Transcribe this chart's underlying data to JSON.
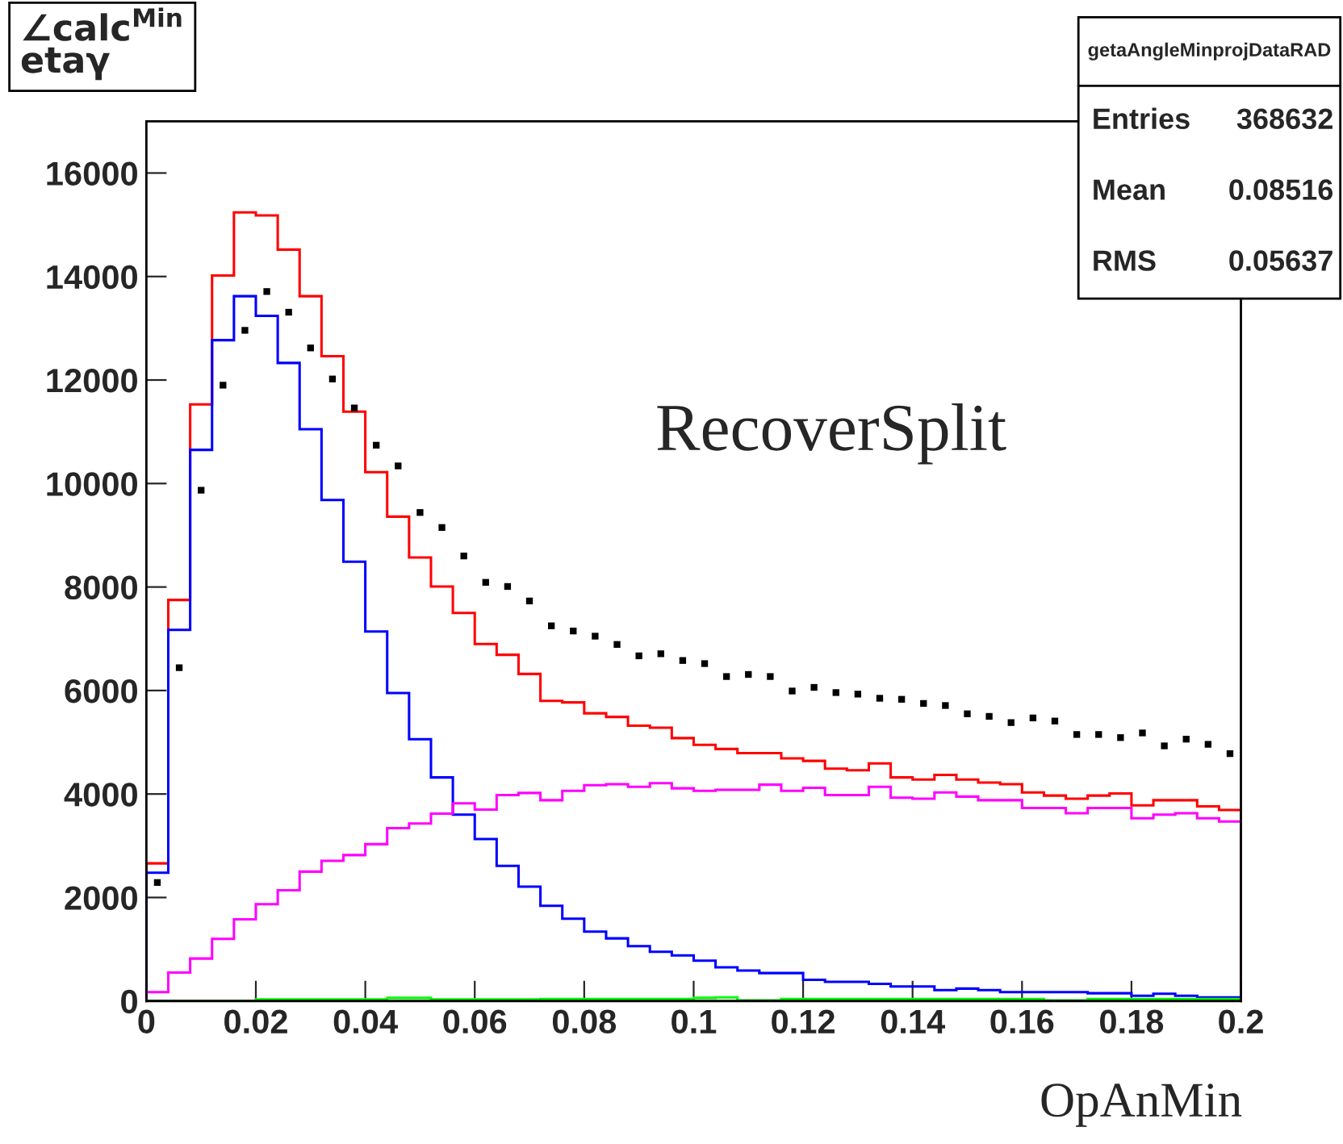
{
  "chart_data": {
    "type": "histogram",
    "title": "∠calc$^{Min}$\netaγ",
    "xlabel": "OpAnMin",
    "bins": [
      0,
      0.004,
      0.008,
      0.012,
      0.016,
      0.02,
      0.024,
      0.028,
      0.032,
      0.036,
      0.04,
      0.044,
      0.048,
      0.052,
      0.056,
      0.06,
      0.064,
      0.068,
      0.072,
      0.076,
      0.08,
      0.084,
      0.088,
      0.092,
      0.096,
      0.1,
      0.104,
      0.108,
      0.112,
      0.116,
      0.12,
      0.124,
      0.128,
      0.132,
      0.136,
      0.14,
      0.144,
      0.148,
      0.152,
      0.156,
      0.16,
      0.164,
      0.168,
      0.172,
      0.176,
      0.18,
      0.184,
      0.188,
      0.192,
      0.196,
      0.2
    ],
    "series": [
      {
        "color": "#ff0000",
        "values": [
          2660,
          7750,
          11530,
          14020,
          15240,
          15180,
          14520,
          13620,
          12460,
          11390,
          10220,
          9360,
          8570,
          8010,
          7500,
          6900,
          6690,
          6320,
          5800,
          5770,
          5560,
          5490,
          5320,
          5280,
          5080,
          4950,
          4870,
          4790,
          4790,
          4690,
          4640,
          4490,
          4460,
          4590,
          4320,
          4280,
          4370,
          4280,
          4220,
          4190,
          4030,
          3970,
          3910,
          3970,
          4010,
          3780,
          3880,
          3880,
          3760,
          3690
        ]
      },
      {
        "color": "#0000ff",
        "values": [
          2480,
          7170,
          10650,
          12770,
          13620,
          13240,
          12330,
          11050,
          9680,
          8490,
          7140,
          5950,
          5060,
          4320,
          3600,
          3130,
          2610,
          2210,
          1840,
          1590,
          1340,
          1210,
          1060,
          950,
          880,
          780,
          650,
          590,
          540,
          540,
          410,
          370,
          370,
          330,
          280,
          280,
          210,
          240,
          210,
          170,
          170,
          170,
          170,
          150,
          150,
          100,
          140,
          100,
          70,
          70
        ]
      },
      {
        "color": "#ff00ff",
        "values": [
          170,
          550,
          820,
          1200,
          1580,
          1870,
          2140,
          2500,
          2710,
          2820,
          3030,
          3340,
          3430,
          3620,
          3820,
          3700,
          3980,
          4020,
          3880,
          4060,
          4170,
          4190,
          4140,
          4210,
          4110,
          4060,
          4080,
          4080,
          4180,
          4060,
          4120,
          3980,
          3980,
          4140,
          3930,
          3910,
          4030,
          3950,
          3880,
          3880,
          3730,
          3730,
          3630,
          3730,
          3730,
          3530,
          3600,
          3630,
          3530,
          3470
        ]
      },
      {
        "color": "#00ff00",
        "values": [
          0,
          0,
          0,
          0,
          0,
          30,
          30,
          30,
          30,
          30,
          30,
          60,
          60,
          30,
          30,
          30,
          30,
          30,
          40,
          40,
          40,
          40,
          40,
          40,
          40,
          60,
          70,
          10,
          10,
          40,
          40,
          40,
          40,
          40,
          40,
          40,
          40,
          40,
          40,
          40,
          40,
          10,
          10,
          40,
          40,
          40,
          40,
          40,
          40,
          40
        ]
      },
      {
        "type": "scatter",
        "color": "#000000",
        "x": [
          0.002,
          0.006,
          0.01,
          0.014,
          0.018,
          0.022,
          0.026,
          0.03,
          0.034,
          0.038,
          0.042,
          0.046,
          0.05,
          0.054,
          0.058,
          0.062,
          0.066,
          0.07,
          0.074,
          0.078,
          0.082,
          0.086,
          0.09,
          0.094,
          0.098,
          0.102,
          0.106,
          0.11,
          0.114,
          0.118,
          0.122,
          0.126,
          0.13,
          0.134,
          0.138,
          0.142,
          0.146,
          0.15,
          0.154,
          0.158,
          0.162,
          0.166,
          0.17,
          0.174,
          0.178,
          0.182,
          0.186,
          0.19,
          0.194,
          0.198
        ],
        "values": [
          2290,
          6440,
          9870,
          11900,
          12960,
          13710,
          13310,
          12620,
          12020,
          11460,
          10740,
          10340,
          9440,
          9150,
          8600,
          8090,
          8010,
          7730,
          7250,
          7150,
          7050,
          6890,
          6670,
          6710,
          6580,
          6520,
          6270,
          6310,
          6270,
          5990,
          6060,
          5960,
          5930,
          5850,
          5830,
          5750,
          5710,
          5550,
          5500,
          5380,
          5470,
          5410,
          5150,
          5150,
          5090,
          5180,
          4930,
          5060,
          4960,
          4780
        ]
      }
    ],
    "marker": "square",
    "xlim": [
      0,
      0.2
    ],
    "xticks": [
      0,
      0.02,
      0.04,
      0.06,
      0.08,
      0.1,
      0.12,
      0.14,
      0.16,
      0.18,
      0.2
    ],
    "ylim": [
      0,
      17000
    ],
    "yticks": [
      0,
      2000,
      4000,
      6000,
      8000,
      10000,
      12000,
      14000,
      16000
    ],
    "grid": false,
    "annotations": [
      "getaAngleMinprojDataRAD",
      "Entries  368632",
      "Mean    0.08516",
      "RMS     0.05637",
      "RecoverSplit"
    ]
  }
}
